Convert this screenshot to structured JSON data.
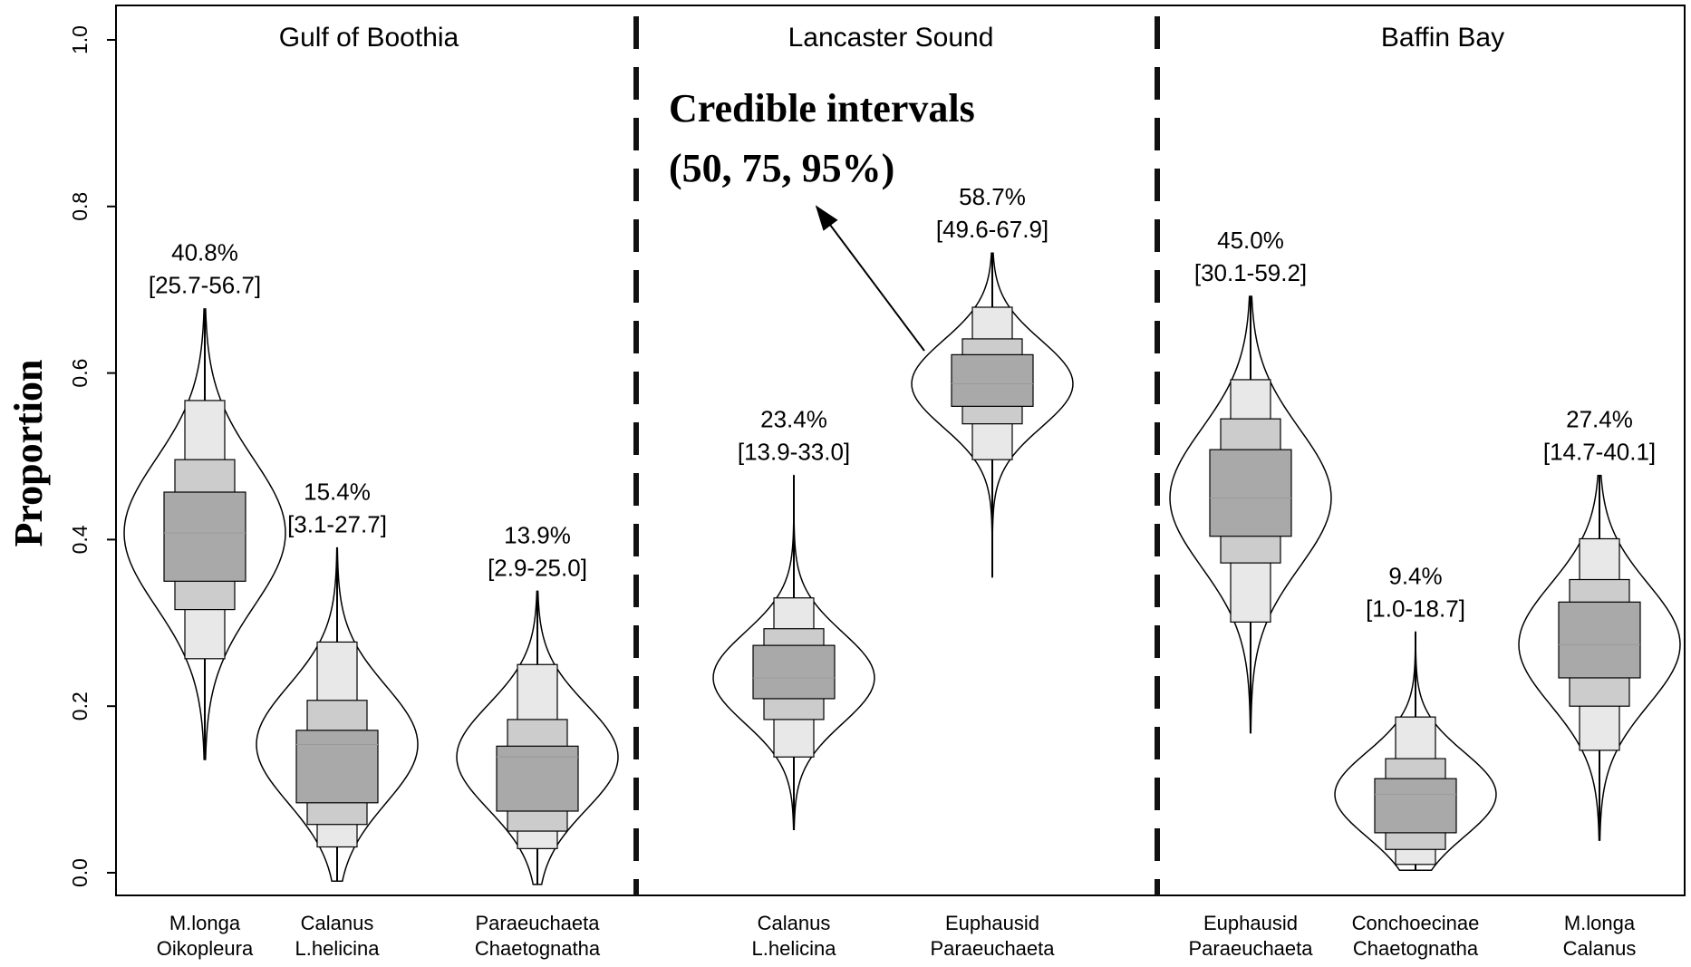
{
  "chart_data": {
    "type": "violin",
    "y_label": "Proportion",
    "ylim": [
      0,
      1
    ],
    "yticks": [
      {
        "value": 0,
        "label": "0.0"
      },
      0.2,
      0.4,
      0.6,
      0.8,
      {
        "value": 1,
        "label": "1.0"
      }
    ],
    "annotation": [
      "Credible intervals",
      "(50, 75, 95%)"
    ],
    "interval_colors": {
      "ci95": "#e8e8e8",
      "ci75": "#cccccc",
      "ci50": "#a9a9a9"
    },
    "groups": [
      {
        "title": "Gulf of Boothia",
        "violins": [
          {
            "category": [
              "M.longa",
              "Oikopleura"
            ],
            "median": 0.408,
            "median_label": "40.8%",
            "ci95": [
              0.257,
              0.567
            ],
            "ci95_label": "[25.7-56.7]",
            "ci75": [
              0.316,
              0.496
            ],
            "ci50": [
              0.35,
              0.457
            ],
            "range": [
              0.136,
              0.677
            ]
          },
          {
            "category": [
              "Calanus",
              "L.helicina"
            ],
            "median": 0.154,
            "median_label": "15.4%",
            "ci95": [
              0.031,
              0.277
            ],
            "ci95_label": "[3.1-27.7]",
            "ci75": [
              0.058,
              0.207
            ],
            "ci50": [
              0.084,
              0.171
            ],
            "range": [
              -0.01,
              0.39
            ]
          },
          {
            "category": [
              "Paraeuchaeta",
              "Chaetognatha"
            ],
            "median": 0.139,
            "median_label": "13.9%",
            "ci95": [
              0.029,
              0.25
            ],
            "ci95_label": "[2.9-25.0]",
            "ci75": [
              0.05,
              0.184
            ],
            "ci50": [
              0.074,
              0.152
            ],
            "range": [
              -0.014,
              0.338
            ]
          }
        ]
      },
      {
        "title": "Lancaster Sound",
        "violins": [
          {
            "category": [
              "Calanus",
              "L.helicina"
            ],
            "median": 0.234,
            "median_label": "23.4%",
            "ci95": [
              0.139,
              0.33
            ],
            "ci95_label": "[13.9-33.0]",
            "ci75": [
              0.184,
              0.293
            ],
            "ci50": [
              0.209,
              0.273
            ],
            "range": [
              0.052,
              0.477
            ]
          },
          {
            "category": [
              "Euphausid",
              "Paraeuchaeta"
            ],
            "median": 0.587,
            "median_label": "58.7%",
            "ci95": [
              0.496,
              0.679
            ],
            "ci95_label": "[49.6-67.9]",
            "ci75": [
              0.539,
              0.641
            ],
            "ci50": [
              0.56,
              0.622
            ],
            "range": [
              0.355,
              0.744
            ]
          }
        ]
      },
      {
        "title": "Baffin Bay",
        "violins": [
          {
            "category": [
              "Euphausid",
              "Paraeuchaeta"
            ],
            "median": 0.45,
            "median_label": "45.0%",
            "ci95": [
              0.301,
              0.592
            ],
            "ci95_label": "[30.1-59.2]",
            "ci75": [
              0.372,
              0.545
            ],
            "ci50": [
              0.404,
              0.508
            ],
            "range": [
              0.168,
              0.692
            ]
          },
          {
            "category": [
              "Conchoecinae",
              "Chaetognatha"
            ],
            "median": 0.094,
            "median_label": "9.4%",
            "ci95": [
              0.01,
              0.187
            ],
            "ci95_label": "[1.0-18.7]",
            "ci75": [
              0.028,
              0.137
            ],
            "ci50": [
              0.048,
              0.113
            ],
            "range": [
              0.003,
              0.289
            ]
          },
          {
            "category": [
              "M.longa",
              "Calanus"
            ],
            "median": 0.274,
            "median_label": "27.4%",
            "ci95": [
              0.147,
              0.401
            ],
            "ci95_label": "[14.7-40.1]",
            "ci75": [
              0.2,
              0.352
            ],
            "ci50": [
              0.234,
              0.325
            ],
            "range": [
              0.039,
              0.477
            ]
          }
        ]
      }
    ]
  }
}
